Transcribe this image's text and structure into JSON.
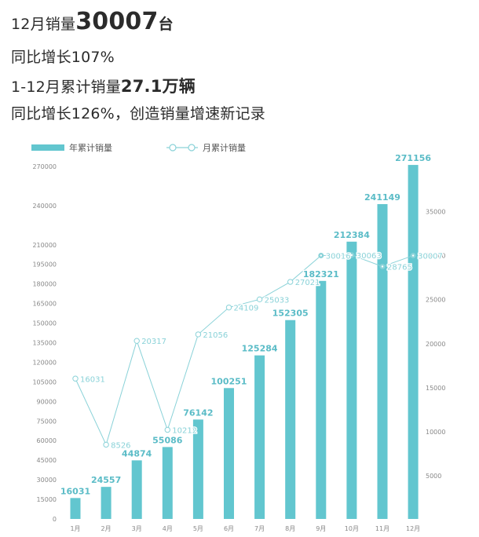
{
  "headline": {
    "line1_prefix": "12月销量",
    "line1_value": "30007",
    "line1_suffix": "台",
    "line2": "同比增长107%",
    "line3_prefix": "1-12月累计销量",
    "line3_value": "27.1万辆",
    "line4": "同比增长126%，创造销量增速新记录"
  },
  "colors": {
    "bar": "#62c6cf",
    "line": "#8ad2d8",
    "bar_label": "#5bbcc7",
    "axis_text": "#888888"
  },
  "chart_data": {
    "type": "bar+line",
    "categories": [
      "1月",
      "2月",
      "3月",
      "4月",
      "5月",
      "6月",
      "7月",
      "8月",
      "9月",
      "10月",
      "11月",
      "12月"
    ],
    "series": [
      {
        "name": "年累计销量",
        "type": "bar",
        "axis": "left",
        "values": [
          16031,
          24557,
          44874,
          55086,
          76142,
          100251,
          125284,
          152305,
          182321,
          212384,
          241149,
          271156
        ]
      },
      {
        "name": "月累计销量",
        "type": "line",
        "axis": "right",
        "values": [
          16031,
          8526,
          20317,
          10212,
          21056,
          24109,
          25033,
          27021,
          30016,
          30063,
          28765,
          30007
        ]
      }
    ],
    "left_axis": {
      "ylim": [
        0,
        270000
      ],
      "ticks": [
        "0",
        "15000",
        "30000",
        "45000",
        "60000",
        "75000",
        "90000",
        "105000",
        "120000",
        "135000",
        "150000",
        "165000",
        "180000",
        "195000",
        "210000",
        "240000",
        "270000"
      ]
    },
    "right_axis": {
      "ylim": [
        0,
        40000
      ],
      "ticks": [
        "5000",
        "10000",
        "15000",
        "20000",
        "25000",
        "30000",
        "35000"
      ]
    },
    "legend_position": "top-left",
    "grid": false
  }
}
